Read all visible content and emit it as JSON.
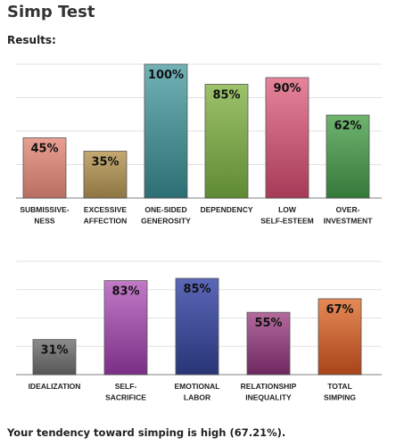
{
  "page": {
    "title": "Simp Test",
    "results_label": "Results:",
    "summary": "Your tendency toward simping is high (67.21%)."
  },
  "chart_data": [
    {
      "type": "bar",
      "ylim": [
        0,
        100
      ],
      "grid": true,
      "categories": [
        [
          "SUBMISSIVE-",
          "NESS"
        ],
        [
          "EXCESSIVE",
          "AFFECTION"
        ],
        [
          "ONE-SIDED",
          "GENEROSITY"
        ],
        [
          "DEPENDENCY"
        ],
        [
          "LOW",
          "SELF-ESTEEM"
        ],
        [
          "OVER-",
          "INVESTMENT"
        ]
      ],
      "values": [
        45,
        35,
        100,
        85,
        90,
        62
      ],
      "data_labels": [
        "45%",
        "35%",
        "100%",
        "85%",
        "90%",
        "62%"
      ],
      "colors": [
        [
          "#e9a093",
          "#b86e60"
        ],
        [
          "#c3a872",
          "#8e7642"
        ],
        [
          "#72b2b6",
          "#2c6e73"
        ],
        [
          "#9cc26a",
          "#5f8a34"
        ],
        [
          "#e6849a",
          "#a63a58"
        ],
        [
          "#6fb36f",
          "#34793a"
        ]
      ]
    },
    {
      "type": "bar",
      "ylim": [
        0,
        100
      ],
      "grid": true,
      "categories": [
        [
          "IDEALIZATION"
        ],
        [
          "SELF-",
          "SACRIFICE"
        ],
        [
          "EMOTIONAL",
          "LABOR"
        ],
        [
          "RELATIONSHIP",
          "INEQUALITY"
        ],
        [
          "TOTAL",
          "SIMPING"
        ]
      ],
      "values": [
        31,
        83,
        85,
        55,
        67
      ],
      "data_labels": [
        "31%",
        "83%",
        "85%",
        "55%",
        "67%"
      ],
      "colors": [
        [
          "#8c8c8c",
          "#555555"
        ],
        [
          "#c27ac7",
          "#7a2f86"
        ],
        [
          "#5b67b8",
          "#283576"
        ],
        [
          "#b26a9d",
          "#6e2860"
        ],
        [
          "#e58a56",
          "#a8441a"
        ]
      ]
    }
  ]
}
